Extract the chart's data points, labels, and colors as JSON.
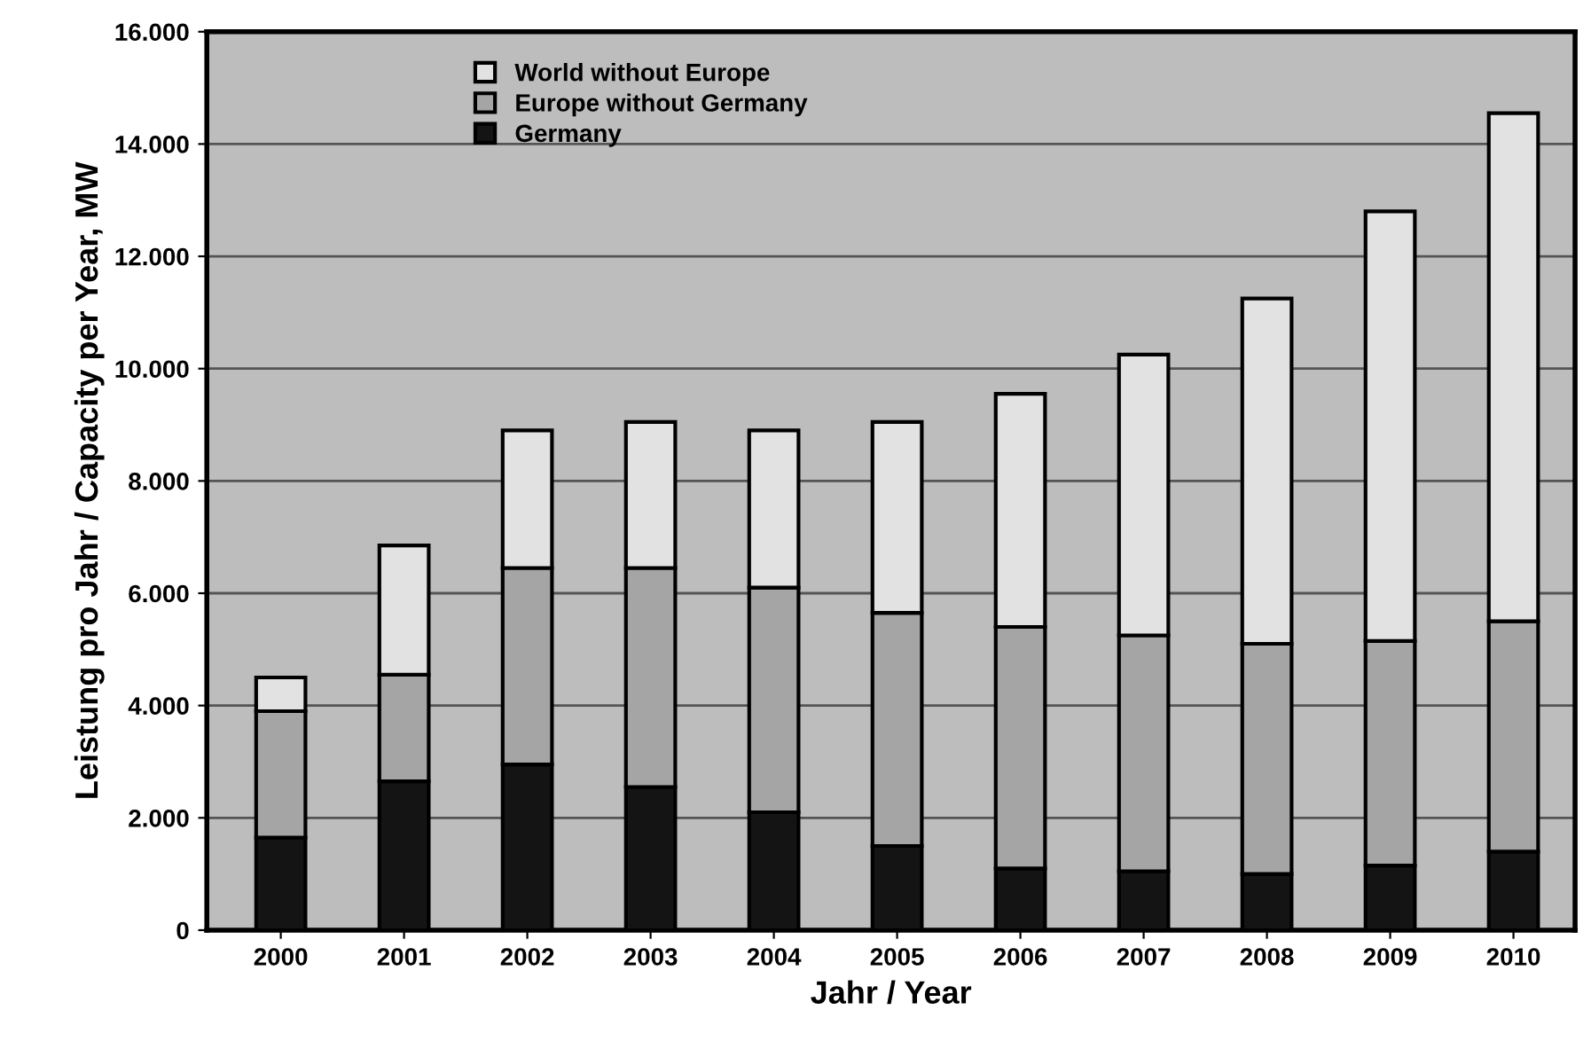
{
  "chart_data": {
    "type": "bar",
    "stacked": true,
    "xlabel": "Jahr / Year",
    "ylabel": "Leistung pro Jahr / Capacity per Year, MW",
    "categories": [
      "2000",
      "2001",
      "2002",
      "2003",
      "2004",
      "2005",
      "2006",
      "2007",
      "2008",
      "2009",
      "2010"
    ],
    "series": [
      {
        "name": "Germany",
        "color": "#141414",
        "values": [
          1650,
          2650,
          2950,
          2550,
          2100,
          1500,
          1100,
          1050,
          1000,
          1150,
          1400
        ]
      },
      {
        "name": "Europe without Germany",
        "color": "#a5a5a5",
        "values": [
          2250,
          1900,
          3500,
          3900,
          4000,
          4150,
          4300,
          4200,
          4100,
          4000,
          4100
        ]
      },
      {
        "name": "World without Europe",
        "color": "#e2e2e2",
        "values": [
          600,
          2300,
          2450,
          2600,
          2800,
          3400,
          4150,
          5000,
          6150,
          7650,
          9050
        ]
      }
    ],
    "ylim": [
      0,
      16000
    ],
    "yticks": [
      {
        "value": 0,
        "label": "0"
      },
      {
        "value": 2000,
        "label": "2.000"
      },
      {
        "value": 4000,
        "label": "4.000"
      },
      {
        "value": 6000,
        "label": "6.000"
      },
      {
        "value": 8000,
        "label": "8.000"
      },
      {
        "value": 10000,
        "label": "10.000"
      },
      {
        "value": 12000,
        "label": "12.000"
      },
      {
        "value": 14000,
        "label": "14.000"
      },
      {
        "value": 16000,
        "label": "16.000"
      }
    ],
    "grid": "y",
    "legend": "top left"
  }
}
